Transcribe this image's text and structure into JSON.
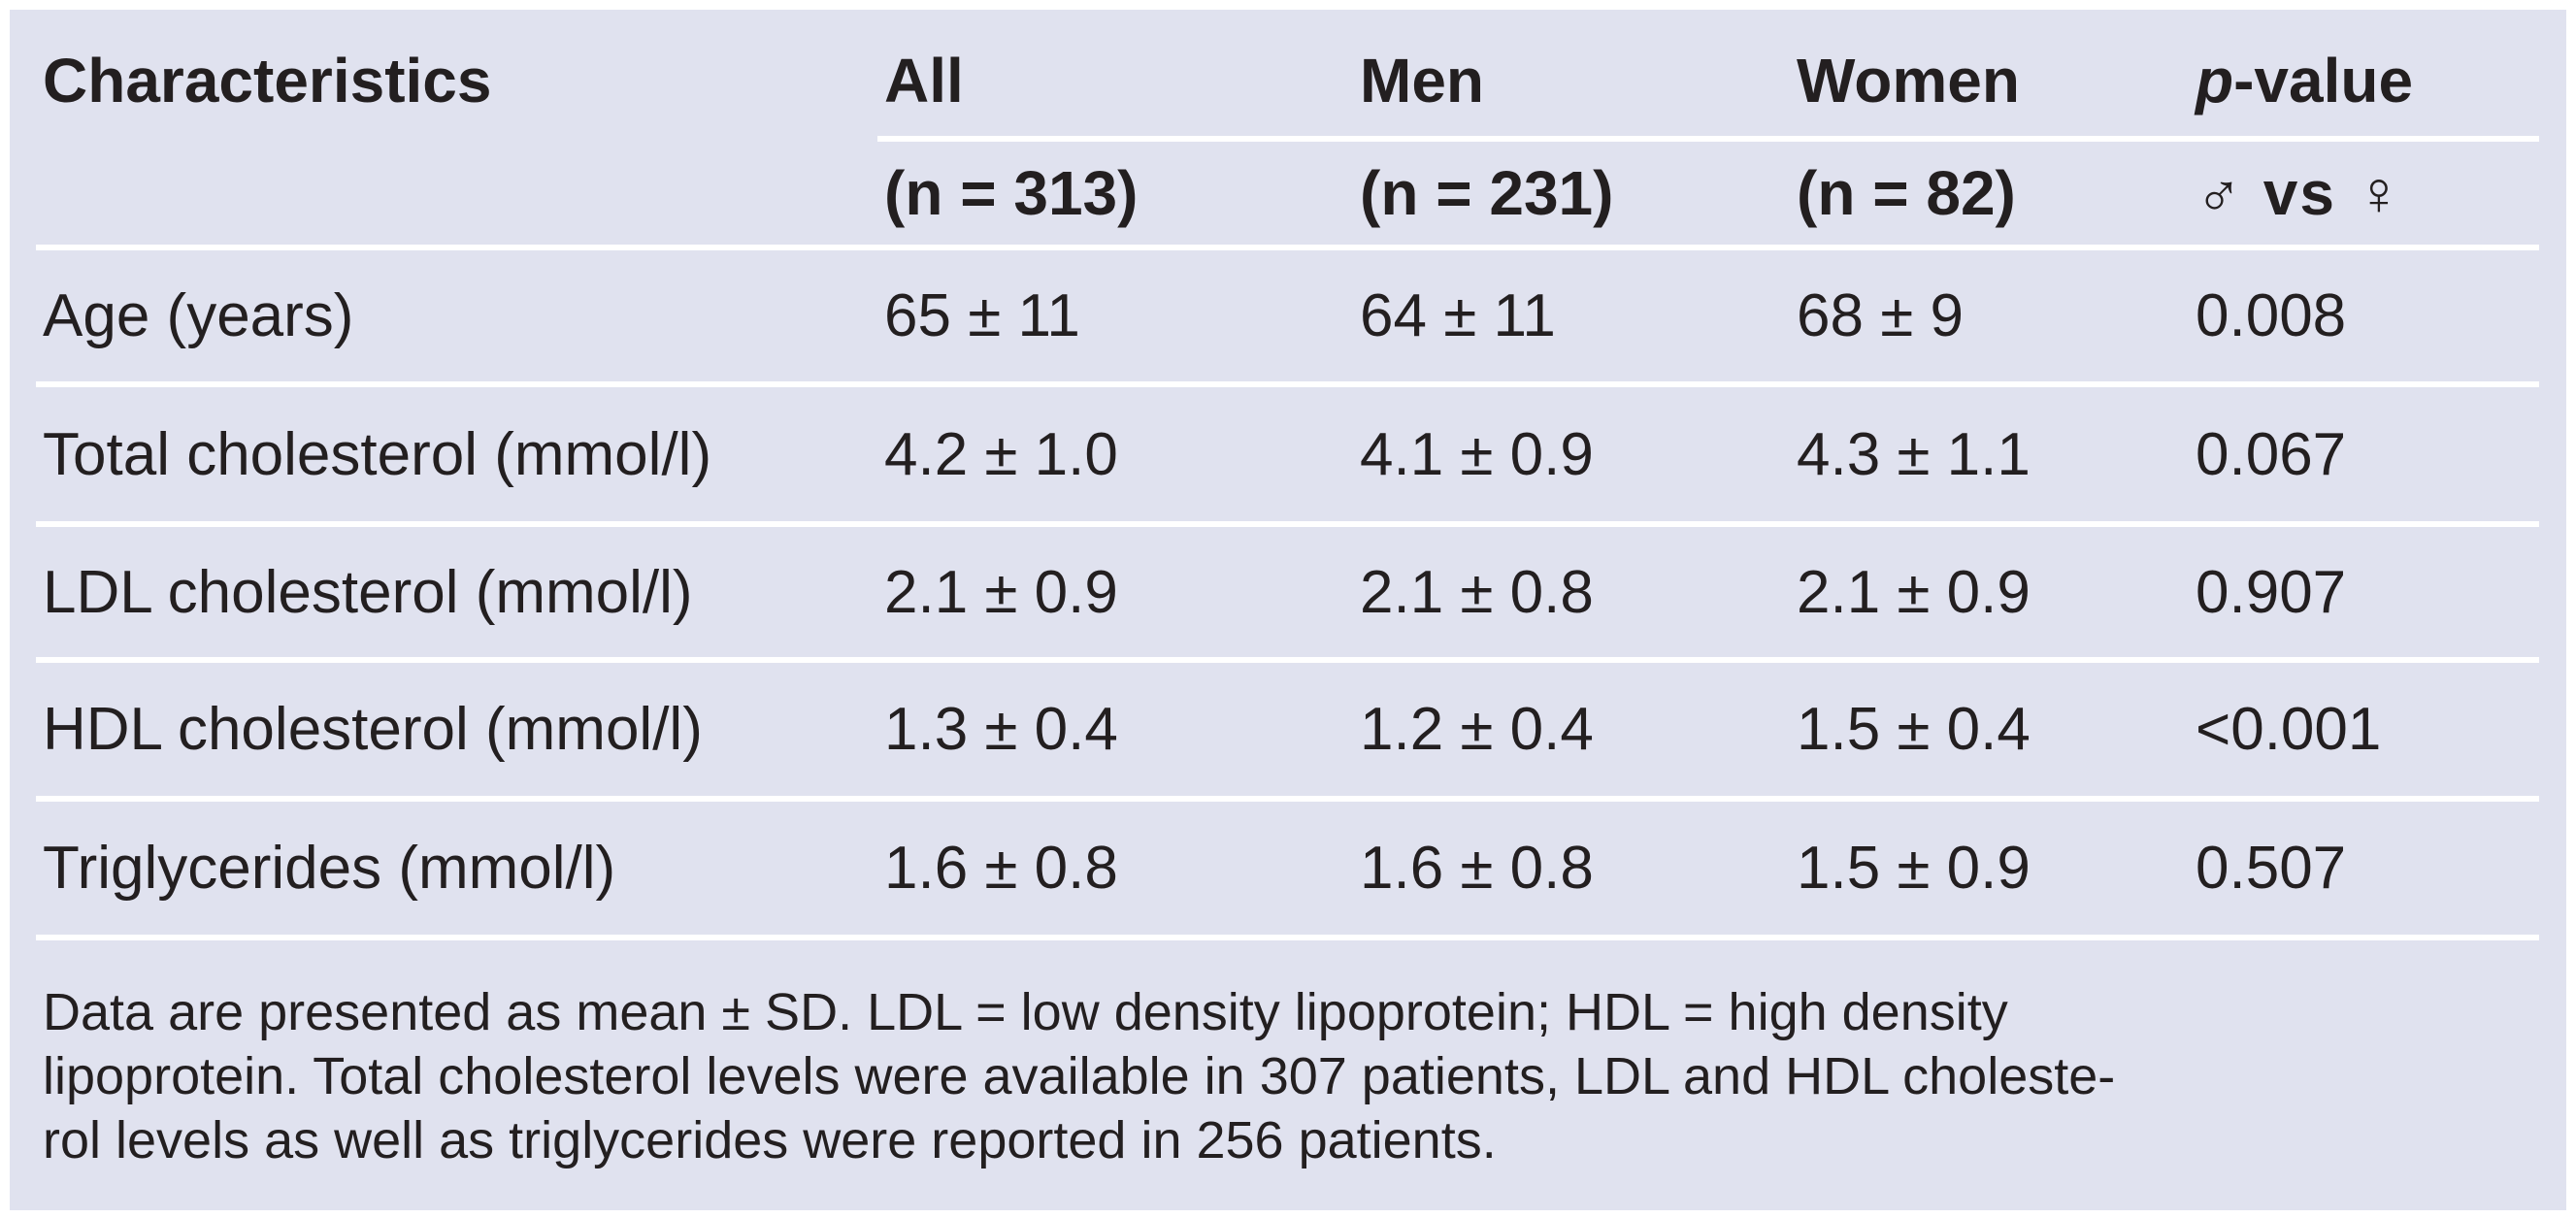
{
  "table": {
    "columns": {
      "characteristics": "Characteristics",
      "all": {
        "label": "All",
        "sub": "(n = 313)"
      },
      "men": {
        "label": "Men",
        "sub": "(n = 231)"
      },
      "women": {
        "label": "Women",
        "sub": "(n = 82)"
      },
      "pvalue": {
        "label_italic": "p",
        "label_rest": "-value",
        "sub": "♂ vs ♀"
      }
    },
    "rows": [
      {
        "label": "Age (years)",
        "all": "65 ± 11",
        "men": "64 ± 11",
        "women": "68 ± 9",
        "p": "0.008"
      },
      {
        "label": "Total cholesterol (mmol/l)",
        "all": "4.2 ± 1.0",
        "men": "4.1 ± 0.9",
        "women": "4.3 ± 1.1",
        "p": "0.067"
      },
      {
        "label": "LDL cholesterol (mmol/l)",
        "all": "2.1 ± 0.9",
        "men": "2.1 ± 0.8",
        "women": "2.1 ± 0.9",
        "p": "0.907"
      },
      {
        "label": "HDL cholesterol (mmol/l)",
        "all": "1.3 ± 0.4",
        "men": "1.2 ± 0.4",
        "women": "1.5 ± 0.4",
        "p": "<0.001"
      },
      {
        "label": "Triglycerides (mmol/l)",
        "all": "1.6 ± 0.8",
        "men": "1.6 ± 0.8",
        "women": "1.5 ± 0.9",
        "p": "0.507"
      }
    ],
    "footnote_lines": [
      "Data are presented as mean ± SD. LDL = low density lipoprotein; HDL = high density",
      "lipoprotein. Total cholesterol levels were available in 307 patients, LDL and HDL choleste-",
      "rol levels as well as triglycerides were reported in 256 patients."
    ]
  },
  "colors": {
    "background": "#e0e2ef",
    "text": "#231f20",
    "rule": "#ffffff"
  }
}
